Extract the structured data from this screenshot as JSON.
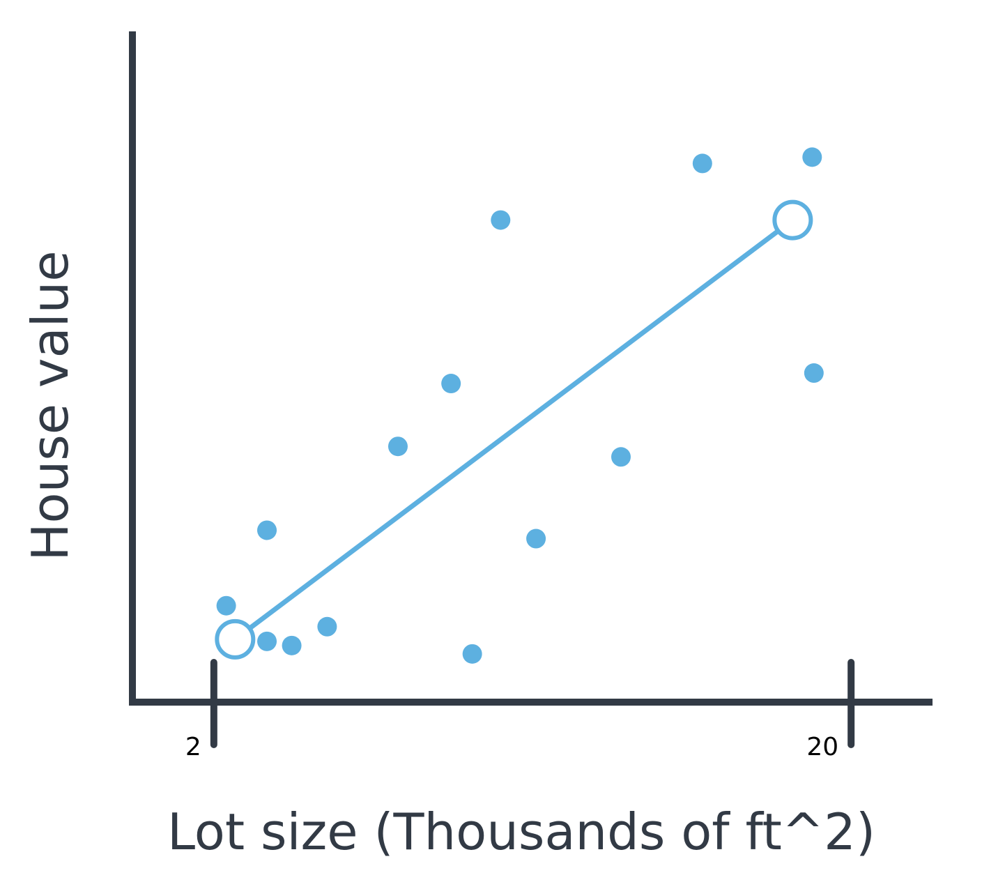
{
  "colors": {
    "axis": "#323a45",
    "point": "#5db0e0",
    "background": "#ffffff"
  },
  "chart_data": {
    "type": "scatter",
    "title": "",
    "xlabel": "Lot size (Thousands of ft^2)",
    "ylabel": "House value",
    "xlim": [
      -0.3,
      22.3
    ],
    "ylim": [
      0,
      16
    ],
    "x_ticks": [
      {
        "value": 2,
        "label": "2"
      },
      {
        "value": 20,
        "label": "20"
      }
    ],
    "y_ticks": [],
    "grid": false,
    "points": [
      {
        "x": 2.35,
        "y": 2.3
      },
      {
        "x": 3.5,
        "y": 1.45
      },
      {
        "x": 3.5,
        "y": 4.1
      },
      {
        "x": 4.2,
        "y": 1.35
      },
      {
        "x": 5.2,
        "y": 1.8
      },
      {
        "x": 7.2,
        "y": 6.1
      },
      {
        "x": 8.7,
        "y": 7.6
      },
      {
        "x": 10.1,
        "y": 11.5
      },
      {
        "x": 9.3,
        "y": 1.15
      },
      {
        "x": 11.1,
        "y": 3.9
      },
      {
        "x": 13.5,
        "y": 5.85
      },
      {
        "x": 15.8,
        "y": 12.85
      },
      {
        "x": 18.9,
        "y": 13.0
      },
      {
        "x": 18.95,
        "y": 7.85
      }
    ],
    "fit_line": {
      "start": {
        "x": 2.6,
        "y": 1.5
      },
      "end": {
        "x": 18.35,
        "y": 11.5
      }
    }
  }
}
